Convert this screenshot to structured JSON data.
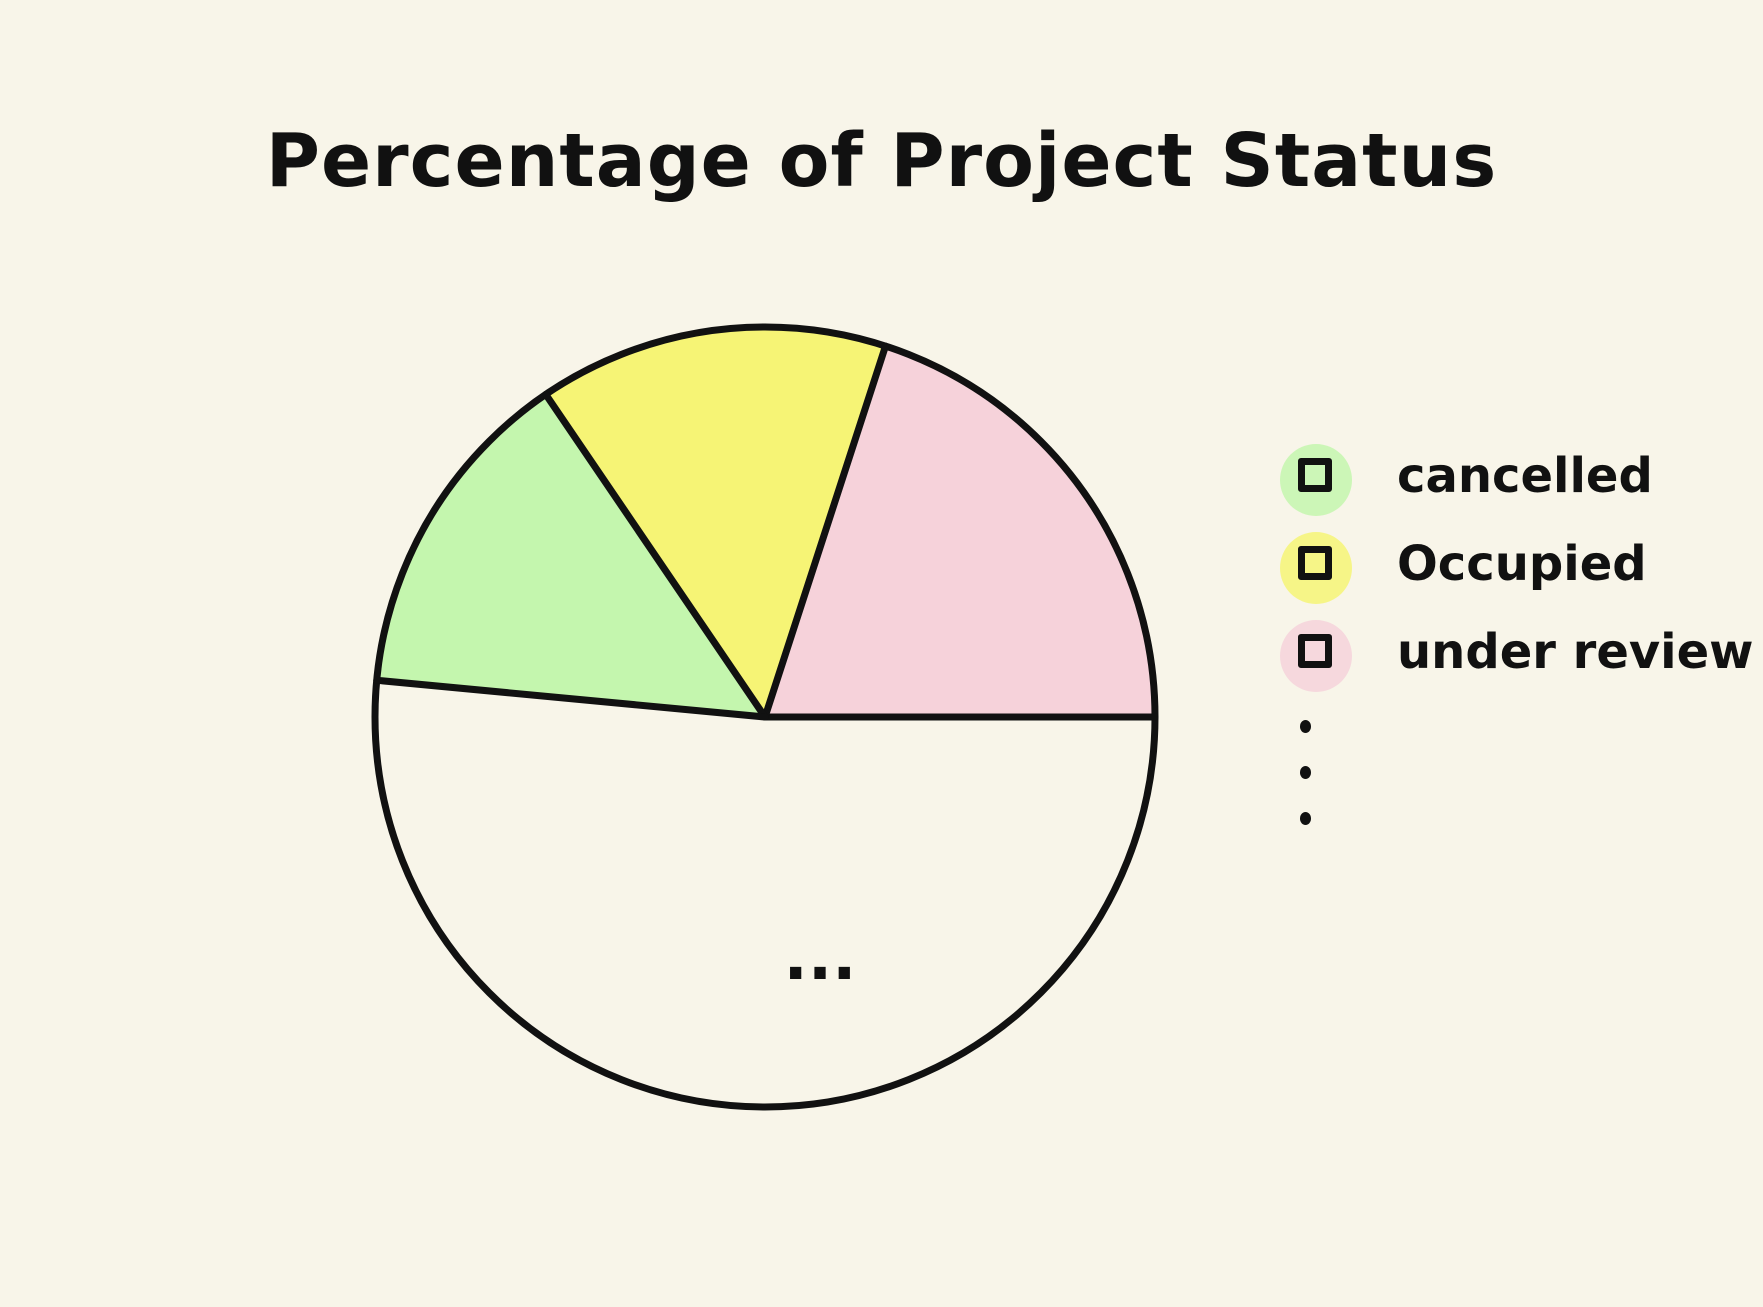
{
  "chart_data": {
    "type": "pie",
    "title": "Percentage of Project Status",
    "series": [
      {
        "name": "cancelled",
        "value": 14,
        "color": "#c4f6ae"
      },
      {
        "name": "Occupied",
        "value": 14.5,
        "color": "#f6f475"
      },
      {
        "name": "under review",
        "value": 20,
        "color": "#f6d2da"
      },
      {
        "name": "",
        "value": 51.5,
        "color": "none"
      }
    ],
    "other_slice_label": "...",
    "legend": {
      "placement": "right",
      "items": [
        "cancelled",
        "Occupied",
        "under review"
      ],
      "continuation": "..."
    }
  }
}
